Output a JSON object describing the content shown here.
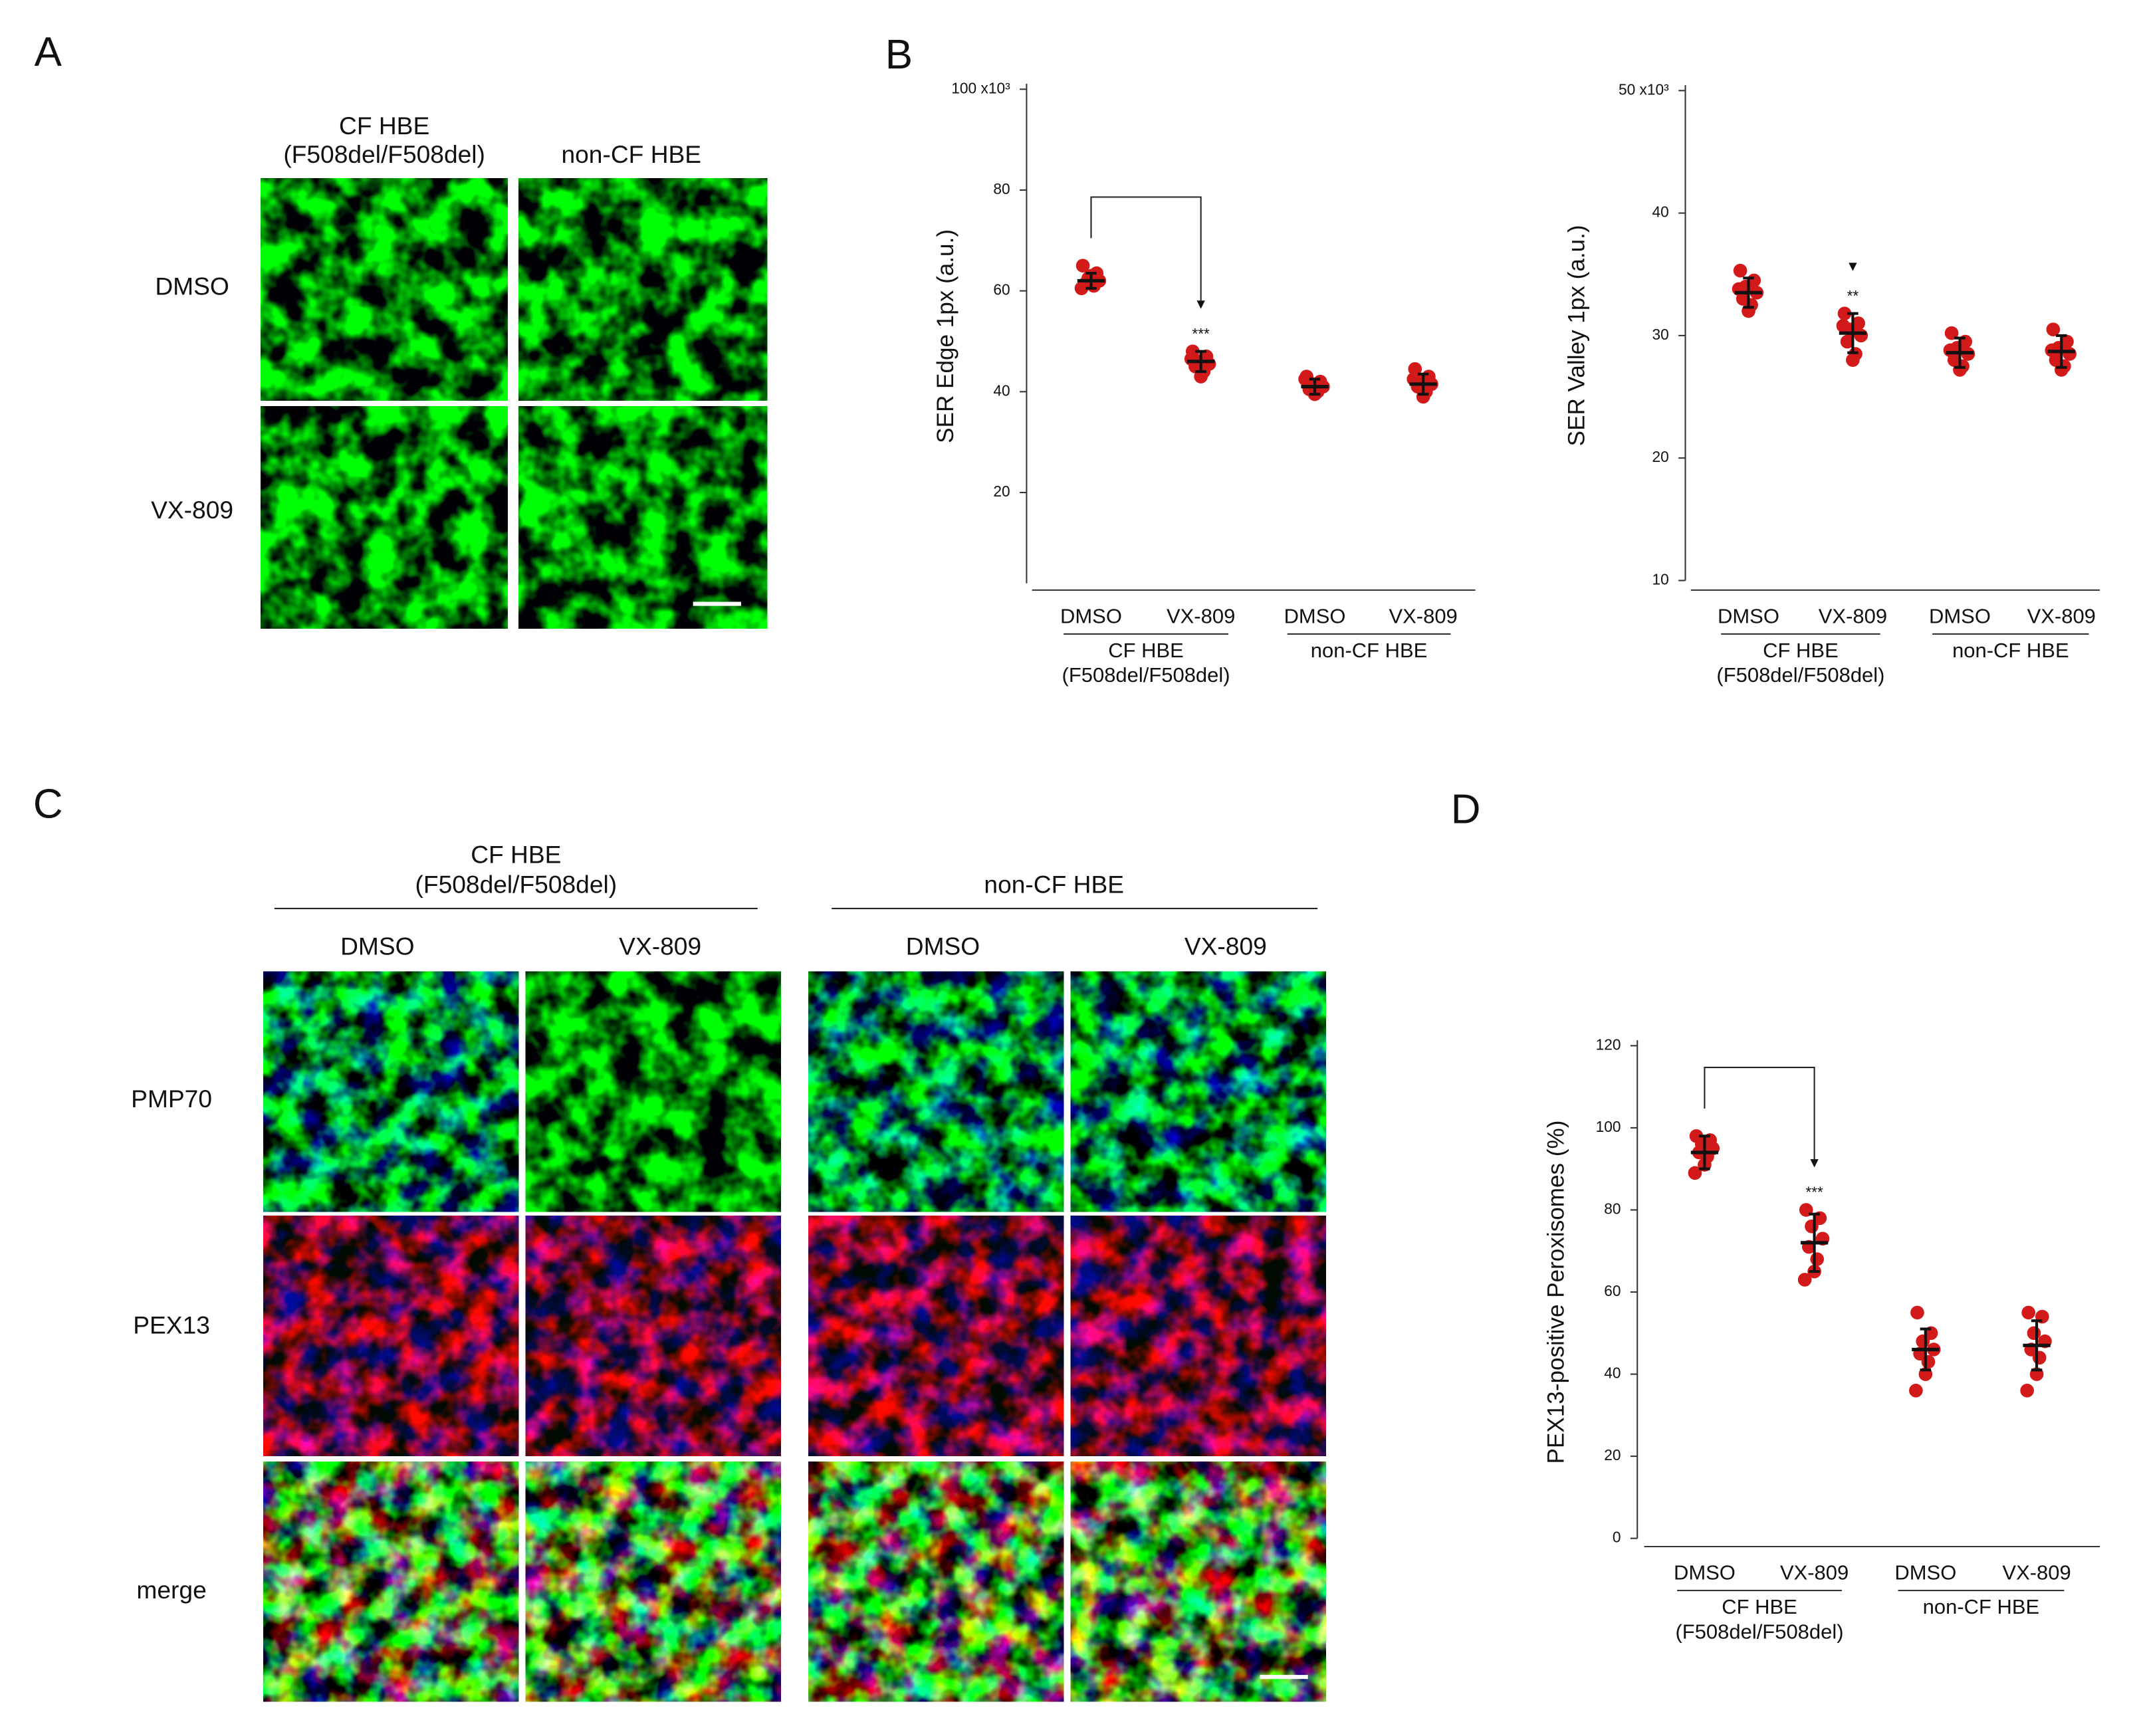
{
  "panels": {
    "a": "A",
    "b": "B",
    "c": "C",
    "d": "D"
  },
  "panel_a": {
    "columns": [
      [
        "CF HBE",
        "(F508del/F508del)"
      ],
      [
        "non-CF HBE"
      ]
    ],
    "rows": [
      "DMSO",
      "VX-809"
    ]
  },
  "panel_c": {
    "groups": [
      [
        "CF HBE",
        "(F508del/F508del)"
      ],
      [
        "non-CF HBE"
      ]
    ],
    "columns": [
      "DMSO",
      "VX-809",
      "DMSO",
      "VX-809"
    ],
    "rows": [
      "PMP70",
      "PEX13",
      "merge"
    ]
  },
  "chart_data": [
    {
      "type": "dotplot",
      "ylabel": "SER Edge 1px (a.u.)",
      "categories": [
        "DMSO",
        "VX-809",
        "DMSO",
        "VX-809"
      ],
      "groups": [
        [
          "CF HBE",
          "(F508del/F508del)"
        ],
        [
          "non-CF HBE"
        ]
      ],
      "values": [
        62,
        46,
        41,
        41.5
      ],
      "errors": [
        1.5,
        2,
        1.5,
        2
      ],
      "points": [
        [
          65,
          63.5,
          62.5,
          62,
          61.5,
          61,
          63,
          60.5
        ],
        [
          48,
          47,
          46,
          45.5,
          45,
          44,
          43,
          46.5
        ],
        [
          43,
          42,
          41.5,
          41,
          40.5,
          40,
          39.5,
          42.5
        ],
        [
          44.5,
          43,
          42,
          41.5,
          41,
          40,
          39,
          42.5
        ]
      ],
      "color": "#d21a1a",
      "annotations": [
        null,
        "***",
        null,
        null
      ],
      "bracket": true,
      "ylim": [
        2,
        100
      ],
      "yticks": [
        20,
        40,
        60,
        80,
        {
          "value": 100,
          "label": "100 x10³"
        }
      ]
    },
    {
      "type": "dotplot",
      "ylabel": "SER Valley 1px (a.u.)",
      "categories": [
        "DMSO",
        "VX-809",
        "DMSO",
        "VX-809"
      ],
      "groups": [
        [
          "CF HBE",
          "(F508del/F508del)"
        ],
        [
          "non-CF HBE"
        ]
      ],
      "values": [
        33.5,
        30.2,
        28.6,
        28.7
      ],
      "errors": [
        1.2,
        1.6,
        1.2,
        1.3
      ],
      "points": [
        [
          35.3,
          34.5,
          34,
          33.5,
          33,
          32.5,
          32,
          33.8
        ],
        [
          31.8,
          31,
          30.5,
          30,
          29.5,
          28.5,
          28,
          30.8
        ],
        [
          30.2,
          29.5,
          29,
          28.5,
          28,
          27.5,
          27.2,
          28.8
        ],
        [
          30.5,
          29.5,
          29,
          28.5,
          28,
          27.5,
          27.2,
          28.8
        ]
      ],
      "color": "#d21a1a",
      "annotations": [
        null,
        "**",
        null,
        null
      ],
      "bracket": false,
      "ylim": [
        10,
        50
      ],
      "yticks": [
        10,
        20,
        30,
        40,
        {
          "value": 50,
          "label": "50 x10³"
        }
      ]
    },
    {
      "type": "dotplot",
      "ylabel": "PEX13-positive Peroxisomes (%)",
      "categories": [
        "DMSO",
        "VX-809",
        "DMSO",
        "VX-809"
      ],
      "groups": [
        [
          "CF HBE",
          "(F508del/F508del)"
        ],
        [
          "non-CF HBE"
        ]
      ],
      "values": [
        94,
        72,
        46,
        47
      ],
      "errors": [
        4,
        7,
        5,
        6
      ],
      "points": [
        [
          98,
          97,
          96,
          95,
          94,
          93,
          91,
          89
        ],
        [
          80,
          78,
          76,
          73,
          71,
          68,
          65,
          63
        ],
        [
          55,
          50,
          48,
          46,
          45,
          43,
          40,
          36
        ],
        [
          55,
          54,
          50,
          48,
          46,
          44,
          40,
          36
        ]
      ],
      "color": "#d21a1a",
      "annotations": [
        null,
        "***",
        null,
        null
      ],
      "bracket": true,
      "ylim": [
        0,
        120
      ],
      "yticks": [
        0,
        20,
        40,
        60,
        80,
        100,
        120
      ]
    }
  ]
}
